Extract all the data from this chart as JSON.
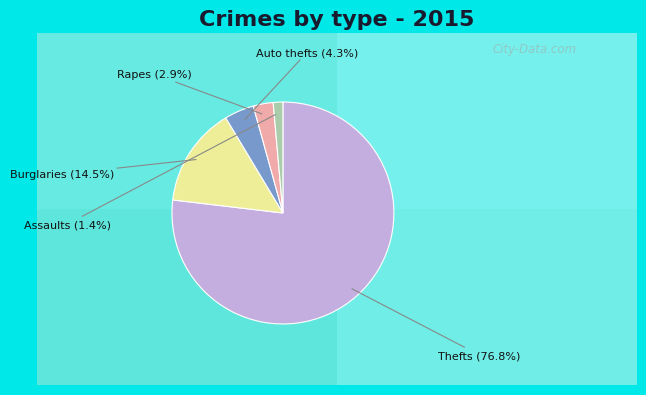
{
  "title": "Crimes by type - 2015",
  "labels": [
    "Thefts",
    "Burglaries",
    "Auto thefts",
    "Rapes",
    "Assaults"
  ],
  "values": [
    76.8,
    14.5,
    4.3,
    2.9,
    1.4
  ],
  "colors": [
    "#c4aee0",
    "#eeee99",
    "#7799cc",
    "#f0aaaa",
    "#aaccaa"
  ],
  "background_cyan": "#00e8e8",
  "background_green": "#d0eadc",
  "title_fontsize": 16,
  "watermark": "City-Data.com",
  "label_texts": [
    "Thefts (76.8%)",
    "Burglaries (14.5%)",
    "Auto thefts (4.3%)",
    "Rapes (2.9%)",
    "Assaults (1.4%)"
  ]
}
